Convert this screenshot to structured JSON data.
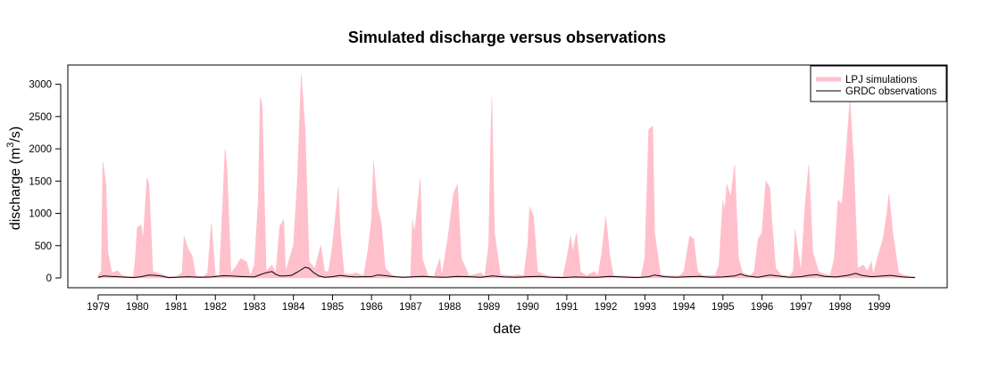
{
  "chart_data": {
    "type": "area",
    "title": "Simulated discharge versus observations",
    "xlabel": "date",
    "ylabel": "discharge (m³/s)",
    "ylabel_parts": {
      "before": "discharge (m",
      "sup": "3",
      "after": "/s)"
    },
    "x_unit": "year",
    "xlim": [
      1979,
      1999.92
    ],
    "ylim": [
      0,
      3200
    ],
    "x_ticks": [
      "1979",
      "1980",
      "1981",
      "1982",
      "1983",
      "1984",
      "1985",
      "1986",
      "1987",
      "1988",
      "1989",
      "1990",
      "1991",
      "1992",
      "1993",
      "1994",
      "1995",
      "1996",
      "1997",
      "1998",
      "1999"
    ],
    "y_ticks": [
      0,
      500,
      1000,
      1500,
      2000,
      2500,
      3000
    ],
    "grid": false,
    "legend_position": "top-right",
    "series": [
      {
        "name": "LPJ simulations",
        "style": "filled-area",
        "color": "#FFC0CB",
        "points": [
          [
            1979.0,
            40
          ],
          [
            1979.08,
            100
          ],
          [
            1979.12,
            1800
          ],
          [
            1979.2,
            1450
          ],
          [
            1979.25,
            400
          ],
          [
            1979.35,
            80
          ],
          [
            1979.5,
            110
          ],
          [
            1979.6,
            40
          ],
          [
            1979.8,
            20
          ],
          [
            1979.9,
            30
          ],
          [
            1979.95,
            300
          ],
          [
            1980.0,
            780
          ],
          [
            1980.1,
            820
          ],
          [
            1980.15,
            600
          ],
          [
            1980.25,
            1550
          ],
          [
            1980.3,
            1450
          ],
          [
            1980.4,
            100
          ],
          [
            1980.6,
            60
          ],
          [
            1980.8,
            20
          ],
          [
            1981.0,
            20
          ],
          [
            1981.15,
            80
          ],
          [
            1981.2,
            650
          ],
          [
            1981.3,
            450
          ],
          [
            1981.4,
            350
          ],
          [
            1981.5,
            30
          ],
          [
            1981.7,
            20
          ],
          [
            1981.8,
            80
          ],
          [
            1981.9,
            850
          ],
          [
            1982.0,
            50
          ],
          [
            1982.1,
            20
          ],
          [
            1982.2,
            1300
          ],
          [
            1982.25,
            2000
          ],
          [
            1982.3,
            1700
          ],
          [
            1982.4,
            80
          ],
          [
            1982.5,
            150
          ],
          [
            1982.65,
            300
          ],
          [
            1982.8,
            250
          ],
          [
            1982.9,
            30
          ],
          [
            1983.0,
            200
          ],
          [
            1983.1,
            1200
          ],
          [
            1983.15,
            2800
          ],
          [
            1983.2,
            2650
          ],
          [
            1983.3,
            100
          ],
          [
            1983.45,
            200
          ],
          [
            1983.55,
            80
          ],
          [
            1983.65,
            800
          ],
          [
            1983.75,
            900
          ],
          [
            1983.8,
            100
          ],
          [
            1983.9,
            300
          ],
          [
            1984.0,
            500
          ],
          [
            1984.1,
            1500
          ],
          [
            1984.2,
            3150
          ],
          [
            1984.3,
            2300
          ],
          [
            1984.4,
            250
          ],
          [
            1984.55,
            150
          ],
          [
            1984.7,
            500
          ],
          [
            1984.8,
            100
          ],
          [
            1984.9,
            100
          ],
          [
            1985.0,
            500
          ],
          [
            1985.1,
            1100
          ],
          [
            1985.15,
            1400
          ],
          [
            1985.2,
            700
          ],
          [
            1985.3,
            60
          ],
          [
            1985.5,
            60
          ],
          [
            1985.6,
            80
          ],
          [
            1985.8,
            30
          ],
          [
            1985.9,
            400
          ],
          [
            1986.0,
            900
          ],
          [
            1986.05,
            1800
          ],
          [
            1986.15,
            1100
          ],
          [
            1986.25,
            850
          ],
          [
            1986.35,
            150
          ],
          [
            1986.5,
            60
          ],
          [
            1986.6,
            20
          ],
          [
            1986.8,
            20
          ],
          [
            1987.0,
            20
          ],
          [
            1987.05,
            900
          ],
          [
            1987.1,
            700
          ],
          [
            1987.2,
            1250
          ],
          [
            1987.25,
            1550
          ],
          [
            1987.3,
            300
          ],
          [
            1987.45,
            30
          ],
          [
            1987.6,
            20
          ],
          [
            1987.75,
            300
          ],
          [
            1987.8,
            30
          ],
          [
            1987.95,
            600
          ],
          [
            1988.1,
            1300
          ],
          [
            1988.2,
            1450
          ],
          [
            1988.3,
            300
          ],
          [
            1988.5,
            30
          ],
          [
            1988.8,
            80
          ],
          [
            1988.9,
            20
          ],
          [
            1989.0,
            500
          ],
          [
            1989.05,
            2100
          ],
          [
            1989.08,
            2800
          ],
          [
            1989.15,
            700
          ],
          [
            1989.3,
            50
          ],
          [
            1989.6,
            30
          ],
          [
            1989.75,
            50
          ],
          [
            1989.9,
            30
          ],
          [
            1990.0,
            500
          ],
          [
            1990.05,
            1100
          ],
          [
            1990.15,
            950
          ],
          [
            1990.25,
            100
          ],
          [
            1990.5,
            30
          ],
          [
            1990.9,
            20
          ],
          [
            1991.0,
            300
          ],
          [
            1991.1,
            650
          ],
          [
            1991.15,
            400
          ],
          [
            1991.25,
            700
          ],
          [
            1991.35,
            100
          ],
          [
            1991.5,
            30
          ],
          [
            1991.7,
            100
          ],
          [
            1991.8,
            30
          ],
          [
            1991.9,
            400
          ],
          [
            1992.0,
            950
          ],
          [
            1992.1,
            350
          ],
          [
            1992.2,
            30
          ],
          [
            1992.5,
            30
          ],
          [
            1992.9,
            20
          ],
          [
            1993.0,
            300
          ],
          [
            1993.1,
            2300
          ],
          [
            1993.2,
            2350
          ],
          [
            1993.25,
            700
          ],
          [
            1993.4,
            50
          ],
          [
            1993.6,
            30
          ],
          [
            1993.9,
            30
          ],
          [
            1994.0,
            100
          ],
          [
            1994.15,
            650
          ],
          [
            1994.25,
            600
          ],
          [
            1994.35,
            100
          ],
          [
            1994.5,
            30
          ],
          [
            1994.8,
            40
          ],
          [
            1994.9,
            200
          ],
          [
            1995.0,
            1200
          ],
          [
            1995.05,
            1050
          ],
          [
            1995.1,
            1450
          ],
          [
            1995.2,
            1250
          ],
          [
            1995.3,
            1750
          ],
          [
            1995.4,
            300
          ],
          [
            1995.5,
            80
          ],
          [
            1995.7,
            30
          ],
          [
            1995.8,
            100
          ],
          [
            1995.9,
            600
          ],
          [
            1996.0,
            700
          ],
          [
            1996.1,
            1500
          ],
          [
            1996.2,
            1400
          ],
          [
            1996.25,
            900
          ],
          [
            1996.35,
            150
          ],
          [
            1996.5,
            40
          ],
          [
            1996.7,
            30
          ],
          [
            1996.8,
            100
          ],
          [
            1996.85,
            750
          ],
          [
            1996.9,
            500
          ],
          [
            1997.0,
            100
          ],
          [
            1997.1,
            1100
          ],
          [
            1997.2,
            1750
          ],
          [
            1997.3,
            400
          ],
          [
            1997.45,
            100
          ],
          [
            1997.6,
            60
          ],
          [
            1997.75,
            40
          ],
          [
            1997.85,
            300
          ],
          [
            1997.95,
            1200
          ],
          [
            1998.05,
            1150
          ],
          [
            1998.15,
            1900
          ],
          [
            1998.25,
            2750
          ],
          [
            1998.35,
            1800
          ],
          [
            1998.45,
            150
          ],
          [
            1998.6,
            200
          ],
          [
            1998.7,
            100
          ],
          [
            1998.8,
            250
          ],
          [
            1998.85,
            50
          ],
          [
            1998.95,
            300
          ],
          [
            1999.1,
            600
          ],
          [
            1999.2,
            1000
          ],
          [
            1999.25,
            1300
          ],
          [
            1999.35,
            700
          ],
          [
            1999.5,
            80
          ],
          [
            1999.65,
            40
          ],
          [
            1999.8,
            20
          ],
          [
            1999.92,
            20
          ]
        ]
      },
      {
        "name": "GRDC observations",
        "style": "line",
        "color": "#000000",
        "points": [
          [
            1979.0,
            10
          ],
          [
            1979.15,
            30
          ],
          [
            1979.3,
            25
          ],
          [
            1979.6,
            15
          ],
          [
            1979.9,
            5
          ],
          [
            1980.1,
            20
          ],
          [
            1980.3,
            45
          ],
          [
            1980.45,
            40
          ],
          [
            1980.6,
            30
          ],
          [
            1980.8,
            5
          ],
          [
            1981.0,
            10
          ],
          [
            1981.3,
            20
          ],
          [
            1981.6,
            10
          ],
          [
            1981.9,
            15
          ],
          [
            1982.2,
            35
          ],
          [
            1982.4,
            30
          ],
          [
            1982.6,
            25
          ],
          [
            1982.8,
            20
          ],
          [
            1983.0,
            15
          ],
          [
            1983.15,
            50
          ],
          [
            1983.3,
            80
          ],
          [
            1983.45,
            100
          ],
          [
            1983.55,
            55
          ],
          [
            1983.65,
            30
          ],
          [
            1983.8,
            30
          ],
          [
            1983.95,
            40
          ],
          [
            1984.1,
            90
          ],
          [
            1984.3,
            165
          ],
          [
            1984.4,
            150
          ],
          [
            1984.5,
            90
          ],
          [
            1984.65,
            30
          ],
          [
            1984.8,
            10
          ],
          [
            1985.0,
            20
          ],
          [
            1985.2,
            40
          ],
          [
            1985.4,
            25
          ],
          [
            1985.6,
            15
          ],
          [
            1985.8,
            20
          ],
          [
            1986.0,
            20
          ],
          [
            1986.15,
            45
          ],
          [
            1986.3,
            40
          ],
          [
            1986.5,
            25
          ],
          [
            1986.8,
            10
          ],
          [
            1987.0,
            15
          ],
          [
            1987.3,
            25
          ],
          [
            1987.6,
            15
          ],
          [
            1987.9,
            10
          ],
          [
            1988.2,
            25
          ],
          [
            1988.5,
            20
          ],
          [
            1988.8,
            10
          ],
          [
            1989.1,
            30
          ],
          [
            1989.4,
            15
          ],
          [
            1989.7,
            10
          ],
          [
            1990.0,
            20
          ],
          [
            1990.3,
            25
          ],
          [
            1990.6,
            10
          ],
          [
            1990.9,
            5
          ],
          [
            1991.2,
            15
          ],
          [
            1991.5,
            10
          ],
          [
            1991.8,
            10
          ],
          [
            1992.1,
            25
          ],
          [
            1992.4,
            15
          ],
          [
            1992.8,
            5
          ],
          [
            1993.1,
            20
          ],
          [
            1993.25,
            45
          ],
          [
            1993.5,
            20
          ],
          [
            1993.8,
            10
          ],
          [
            1994.1,
            20
          ],
          [
            1994.4,
            25
          ],
          [
            1994.7,
            10
          ],
          [
            1995.0,
            15
          ],
          [
            1995.3,
            30
          ],
          [
            1995.45,
            60
          ],
          [
            1995.6,
            30
          ],
          [
            1995.9,
            10
          ],
          [
            1996.2,
            45
          ],
          [
            1996.4,
            30
          ],
          [
            1996.7,
            10
          ],
          [
            1997.0,
            20
          ],
          [
            1997.2,
            40
          ],
          [
            1997.4,
            50
          ],
          [
            1997.6,
            25
          ],
          [
            1997.9,
            15
          ],
          [
            1998.2,
            40
          ],
          [
            1998.4,
            70
          ],
          [
            1998.55,
            40
          ],
          [
            1998.8,
            20
          ],
          [
            1999.1,
            30
          ],
          [
            1999.3,
            40
          ],
          [
            1999.6,
            15
          ],
          [
            1999.92,
            5
          ]
        ]
      }
    ]
  }
}
